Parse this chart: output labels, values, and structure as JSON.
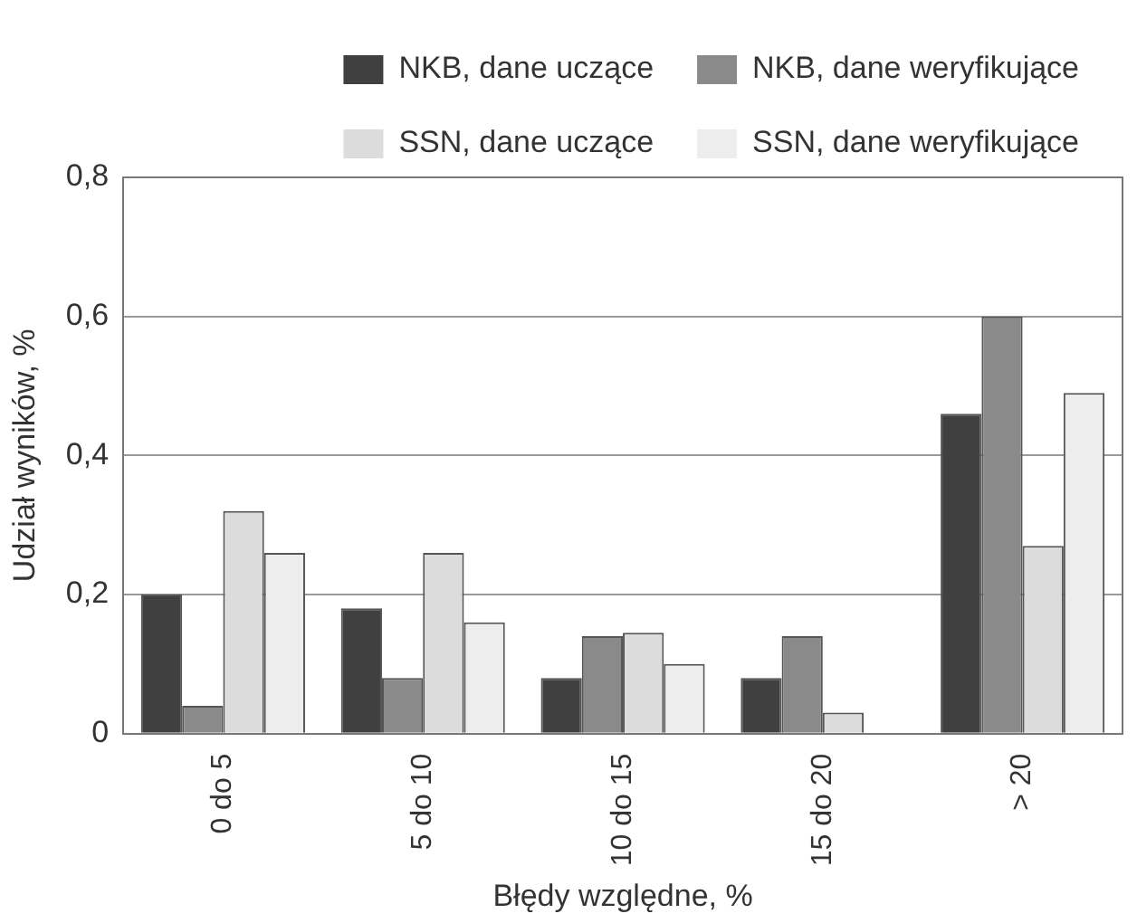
{
  "chart_data": {
    "type": "bar",
    "xlabel": "Błędy względne, %",
    "ylabel": "Udział wyników, %",
    "categories": [
      "0 do 5",
      "5 do 10",
      "10 do 15",
      "15 do 20",
      "> 20"
    ],
    "series": [
      {
        "name": "NKB, dane uczące",
        "color": "#404040",
        "values": [
          0.2,
          0.18,
          0.08,
          0.08,
          0.46
        ]
      },
      {
        "name": "NKB, dane weryfikujące",
        "color": "#8a8a8a",
        "values": [
          0.04,
          0.08,
          0.14,
          0.14,
          0.6
        ]
      },
      {
        "name": "SSN, dane uczące",
        "color": "#dcdcdc",
        "values": [
          0.32,
          0.26,
          0.145,
          0.03,
          0.27
        ]
      },
      {
        "name": "SSN, dane weryfikujące",
        "color": "#ededed",
        "values": [
          0.26,
          0.16,
          0.1,
          0,
          0.49
        ]
      }
    ],
    "ylim": [
      0,
      0.8
    ],
    "yticks": [
      {
        "value": 0,
        "label": "0"
      },
      {
        "value": 0.2,
        "label": "0,2"
      },
      {
        "value": 0.4,
        "label": "0,4"
      },
      {
        "value": 0.6,
        "label": "0,6"
      },
      {
        "value": 0.8,
        "label": "0,8"
      }
    ],
    "grid": "y",
    "legend": "top"
  }
}
